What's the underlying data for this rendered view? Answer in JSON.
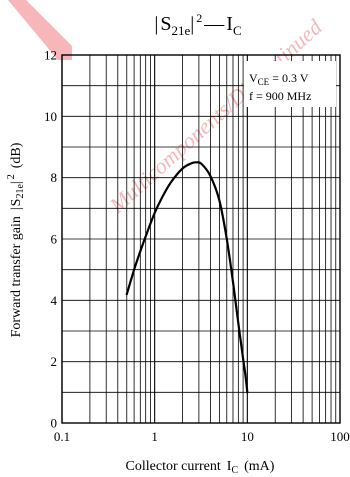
{
  "chart_data": {
    "type": "line",
    "title": {
      "bar_s": "S",
      "sub": "21e",
      "exp": "2",
      "dash": "—",
      "i": "I",
      "i_sub": "C"
    },
    "xlabel": {
      "text": "Collector current",
      "i": "I",
      "i_sub": "C",
      "unit": "(mA)"
    },
    "ylabel": {
      "text": "Forward transfer gain",
      "s": "S",
      "sub": "21e",
      "exp": "2",
      "unit": "(dB)"
    },
    "x_scale": "log",
    "xlim": [
      0.1,
      100
    ],
    "ylim": [
      0,
      12
    ],
    "x_ticks": [
      {
        "value": 0.1,
        "label": "0.1"
      },
      {
        "value": 1,
        "label": "1"
      },
      {
        "value": 10,
        "label": "10"
      },
      {
        "value": 100,
        "label": "100"
      }
    ],
    "y_ticks": [
      {
        "value": 0,
        "label": "0"
      },
      {
        "value": 2,
        "label": "2"
      },
      {
        "value": 4,
        "label": "4"
      },
      {
        "value": 6,
        "label": "6"
      },
      {
        "value": 8,
        "label": "8"
      },
      {
        "value": 10,
        "label": "10"
      },
      {
        "value": 12,
        "label": "12"
      }
    ],
    "minor_y_step": 1,
    "grid": true,
    "conditions": {
      "v_main": "V",
      "v_sub": "CE",
      "v_value": " = 0.3 V",
      "f_line": "f = 900 MHz"
    },
    "series": [
      {
        "x": [
          0.5,
          0.6,
          0.7,
          0.85,
          1.0,
          1.2,
          1.5,
          2.0,
          2.5,
          2.8,
          3.2,
          4.0,
          5.0,
          6.0,
          7.0,
          8.0,
          9.0,
          9.5,
          10.0
        ],
        "y": [
          4.2,
          5.0,
          5.6,
          6.3,
          6.85,
          7.35,
          7.85,
          8.3,
          8.47,
          8.5,
          8.45,
          8.05,
          7.25,
          6.0,
          4.6,
          3.25,
          2.1,
          1.6,
          1.0
        ]
      }
    ],
    "colors": {
      "line": "#000000",
      "grid": "#000000",
      "watermark": "#e8323c"
    }
  },
  "watermark": {
    "text": "Multicomponents/Discontinued",
    "logo": "red-v-logo"
  }
}
